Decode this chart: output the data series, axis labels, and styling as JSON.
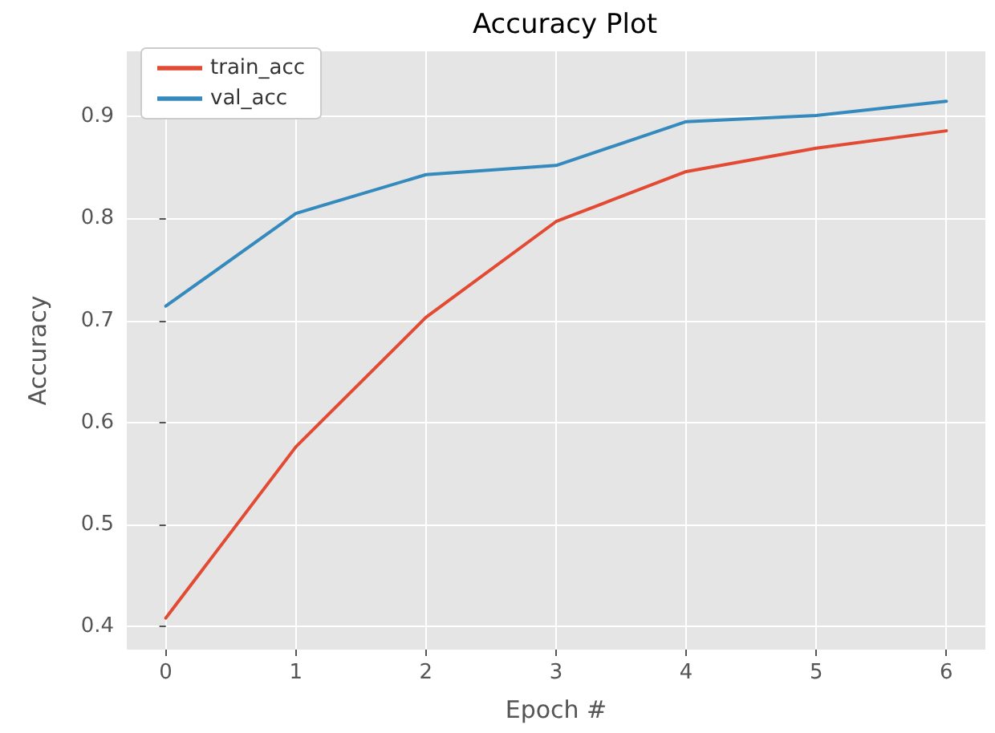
{
  "chart_data": {
    "type": "line",
    "title": "Accuracy Plot",
    "xlabel": "Epoch #",
    "ylabel": "Accuracy",
    "x": [
      0,
      1,
      2,
      3,
      4,
      5,
      6
    ],
    "series": [
      {
        "name": "train_acc",
        "color": "#e24a33",
        "values": [
          0.408,
          0.576,
          0.703,
          0.797,
          0.846,
          0.869,
          0.886
        ]
      },
      {
        "name": "val_acc",
        "color": "#348abd",
        "values": [
          0.714,
          0.805,
          0.843,
          0.852,
          0.895,
          0.901,
          0.915
        ]
      }
    ],
    "xlim": [
      -0.3,
      6.3
    ],
    "xticks": [
      0,
      1,
      2,
      3,
      4,
      5,
      6
    ],
    "ylim": [
      0.377,
      0.964
    ],
    "yticks": [
      0.4,
      0.5,
      0.6,
      0.7,
      0.8,
      0.9
    ],
    "grid": true,
    "legend": "top left",
    "marker": "none",
    "line_style": "solid"
  }
}
